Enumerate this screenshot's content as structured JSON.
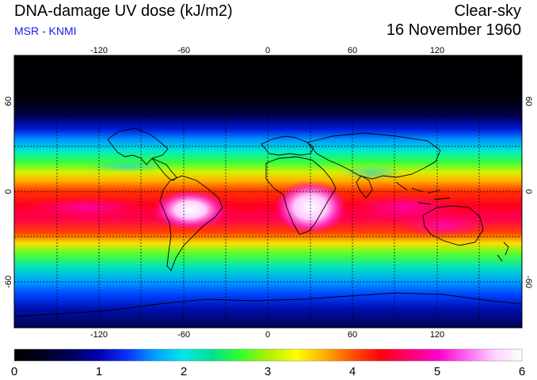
{
  "header": {
    "title": "DNA-damage UV dose (kJ/m2)",
    "sky": "Clear-sky",
    "source": "MSR - KNMI",
    "date": "16 November 1960"
  },
  "map": {
    "lon_ticks": [
      "-120",
      "-60",
      "0",
      "60",
      "120"
    ],
    "lat_ticks": [
      "60",
      "0",
      "-60"
    ]
  },
  "colorbar": {
    "labels": [
      "0",
      "1",
      "2",
      "3",
      "4",
      "5",
      "6"
    ],
    "stops": [
      "#000000",
      "#000020",
      "#00005a",
      "#0000b0",
      "#0a30ff",
      "#00a0ff",
      "#00e8e8",
      "#00e090",
      "#30ff30",
      "#b0f000",
      "#ffff00",
      "#ffb000",
      "#ff5000",
      "#ff0010",
      "#ff0070",
      "#ff00c8",
      "#ff60f0",
      "#ffd0ff",
      "#ffffff"
    ]
  }
}
